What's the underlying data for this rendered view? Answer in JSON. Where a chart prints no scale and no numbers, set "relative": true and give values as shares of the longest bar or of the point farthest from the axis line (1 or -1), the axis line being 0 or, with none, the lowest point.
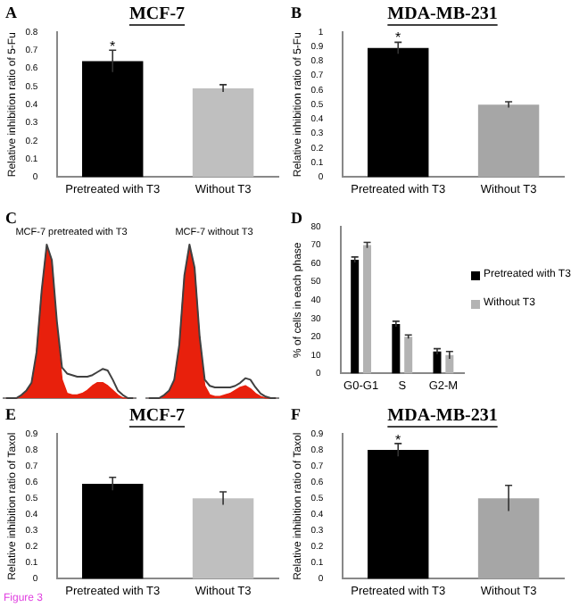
{
  "chart_data": [
    {
      "type": "bar",
      "title": "MCF-7",
      "ylabel": "Relative inhibition ratio of 5-Fu",
      "categories": [
        "Pretreated with T3",
        "Without T3"
      ],
      "values": [
        0.64,
        0.49
      ],
      "errors": [
        0.06,
        0.02
      ],
      "colors": [
        "#000000",
        "#bfbfbf"
      ],
      "ylim": [
        0,
        0.8
      ],
      "yticks": [
        0,
        0.1,
        0.2,
        0.3,
        0.4,
        0.5,
        0.6,
        0.7,
        0.8
      ],
      "grid": false,
      "legend": false,
      "annotations": [
        "A",
        {
          "text": "*",
          "x": "Pretreated with T3",
          "y": 0.72
        }
      ]
    },
    {
      "type": "bar",
      "title": "MDA-MB-231",
      "ylabel": "Relative inhibition ratio of 5-Fu",
      "categories": [
        "Pretreated with T3",
        "Without T3"
      ],
      "values": [
        0.89,
        0.5
      ],
      "errors": [
        0.04,
        0.02
      ],
      "colors": [
        "#000000",
        "#a6a6a6"
      ],
      "ylim": [
        0,
        1
      ],
      "yticks": [
        0,
        0.1,
        0.2,
        0.3,
        0.4,
        0.5,
        0.6,
        0.7,
        0.8,
        0.9,
        1
      ],
      "grid": false,
      "legend": false,
      "annotations": [
        "B",
        {
          "text": "*",
          "x": "Pretreated with T3",
          "y": 0.96
        }
      ]
    },
    {
      "type": "area",
      "title": "MCF-7 pretreated with T3",
      "relative": true,
      "marker": "none",
      "grid": false,
      "legend": false,
      "categories": [
        null,
        null,
        null,
        null,
        null,
        null,
        null,
        null,
        null,
        null,
        null,
        null,
        null,
        null,
        null,
        null,
        null,
        null,
        null,
        null,
        null,
        null,
        null,
        null,
        null,
        null
      ],
      "series": [
        {
          "type": "line",
          "color": "#404040",
          "values": [
            0,
            0,
            0,
            0.02,
            0.05,
            0.1,
            0.3,
            0.7,
            1,
            0.9,
            0.5,
            0.2,
            0.16,
            0.15,
            0.14,
            0.14,
            0.14,
            0.15,
            0.17,
            0.19,
            0.18,
            0.12,
            0.05,
            0.02,
            0,
            0
          ]
        },
        {
          "type": "area",
          "color": "#e8200c",
          "values": [
            0,
            0,
            0,
            0.01,
            0.04,
            0.09,
            0.28,
            0.68,
            0.98,
            0.88,
            0.45,
            0.12,
            0.03,
            0.02,
            0.02,
            0.03,
            0.05,
            0.08,
            0.1,
            0.1,
            0.08,
            0.05,
            0.02,
            0,
            0,
            0
          ]
        }
      ],
      "annotations": [
        "C"
      ]
    },
    {
      "type": "area",
      "title": "MCF-7 without T3",
      "relative": true,
      "marker": "none",
      "grid": false,
      "legend": false,
      "categories": [
        null,
        null,
        null,
        null,
        null,
        null,
        null,
        null,
        null,
        null,
        null,
        null,
        null,
        null,
        null,
        null,
        null,
        null,
        null,
        null,
        null,
        null,
        null,
        null,
        null,
        null
      ],
      "series": [
        {
          "type": "line",
          "color": "#404040",
          "values": [
            0,
            0,
            0,
            0.02,
            0.05,
            0.12,
            0.35,
            0.8,
            1,
            0.85,
            0.4,
            0.12,
            0.08,
            0.07,
            0.07,
            0.07,
            0.07,
            0.08,
            0.1,
            0.13,
            0.12,
            0.07,
            0.03,
            0.01,
            0,
            0
          ]
        },
        {
          "type": "area",
          "color": "#e8200c",
          "values": [
            0,
            0,
            0,
            0.01,
            0.04,
            0.11,
            0.33,
            0.78,
            0.98,
            0.83,
            0.37,
            0.08,
            0.02,
            0.01,
            0.01,
            0.02,
            0.03,
            0.05,
            0.07,
            0.08,
            0.06,
            0.03,
            0.01,
            0,
            0,
            0
          ]
        }
      ]
    },
    {
      "type": "bar",
      "ylabel": "% of cells in each phase",
      "categories": [
        "G0-G1",
        "S",
        "G2-M"
      ],
      "ylim": [
        0,
        80
      ],
      "yticks": [
        0,
        10,
        20,
        30,
        40,
        50,
        60,
        70,
        80
      ],
      "grid": false,
      "legend": "right",
      "series": [
        {
          "name": "Pretreated with T3",
          "color": "#000000",
          "values": [
            62,
            27,
            12
          ],
          "errors": [
            1.5,
            1.5,
            1.5
          ]
        },
        {
          "name": "Without T3",
          "color": "#b3b3b3",
          "values": [
            70,
            20,
            10
          ],
          "errors": [
            1.5,
            1,
            2
          ]
        }
      ],
      "annotations": [
        "D"
      ]
    },
    {
      "type": "bar",
      "title": "MCF-7",
      "ylabel": "Relative inhibition ratio of Taxol",
      "categories": [
        "Pretreated with T3",
        "Without T3"
      ],
      "values": [
        0.59,
        0.5
      ],
      "errors": [
        0.04,
        0.04
      ],
      "colors": [
        "#000000",
        "#bfbfbf"
      ],
      "ylim": [
        0,
        0.9
      ],
      "yticks": [
        0,
        0.1,
        0.2,
        0.3,
        0.4,
        0.5,
        0.6,
        0.7,
        0.8,
        0.9
      ],
      "grid": false,
      "legend": false,
      "annotations": [
        "E",
        "Figure 3"
      ]
    },
    {
      "type": "bar",
      "title": "MDA-MB-231",
      "ylabel": "Relative inhibition ratio of Taxol",
      "categories": [
        "Pretreated with T3",
        "Without T3"
      ],
      "values": [
        0.8,
        0.5
      ],
      "errors": [
        0.04,
        0.08
      ],
      "colors": [
        "#000000",
        "#a6a6a6"
      ],
      "ylim": [
        0,
        0.9
      ],
      "yticks": [
        0,
        0.1,
        0.2,
        0.3,
        0.4,
        0.5,
        0.6,
        0.7,
        0.8,
        0.9
      ],
      "grid": false,
      "legend": false,
      "annotations": [
        "F",
        {
          "text": "*",
          "x": "Pretreated with T3",
          "y": 0.86
        }
      ]
    }
  ]
}
